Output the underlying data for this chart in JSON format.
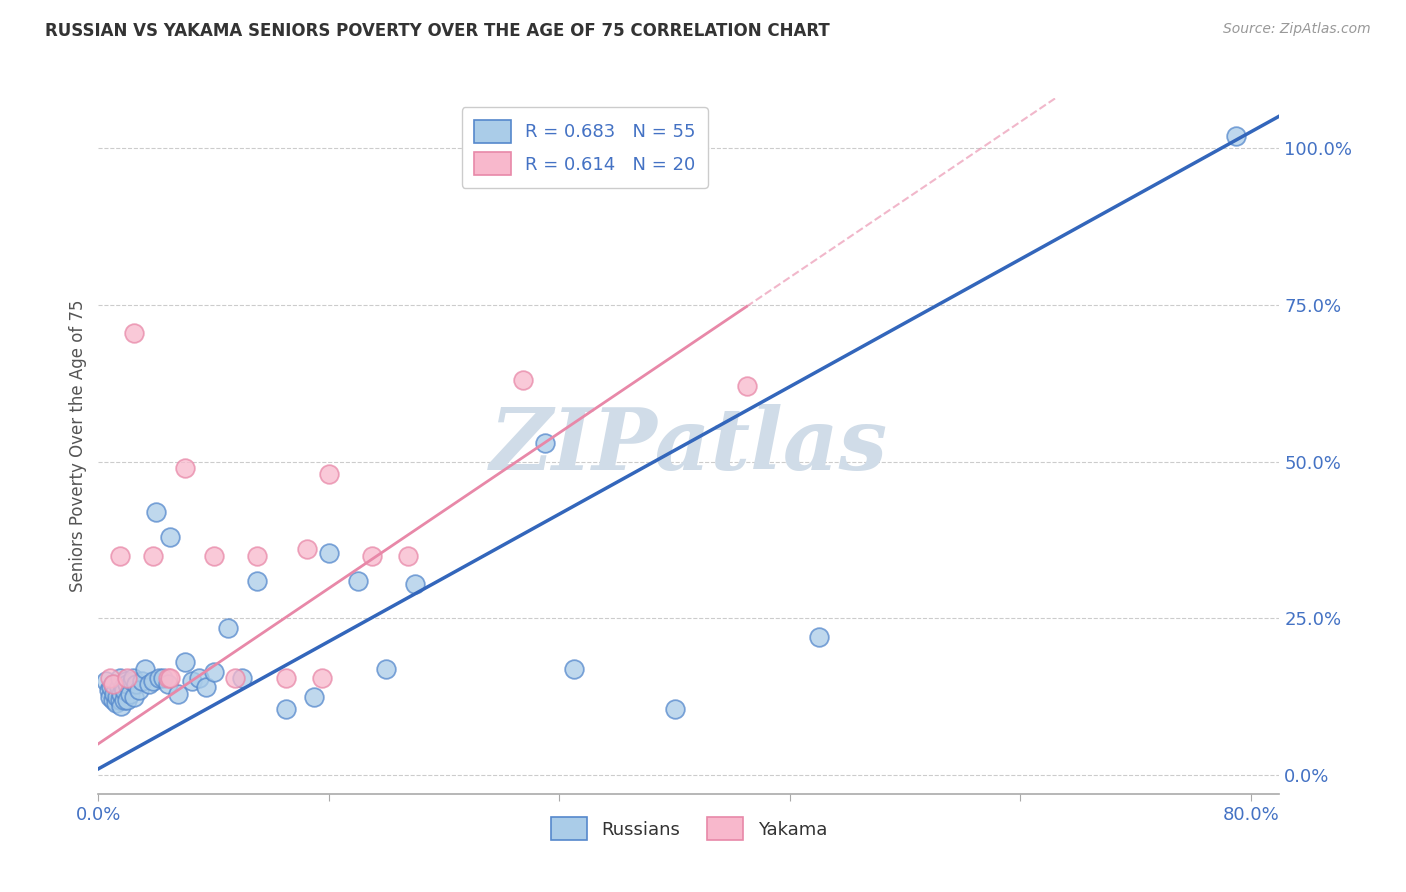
{
  "title": "RUSSIAN VS YAKAMA SENIORS POVERTY OVER THE AGE OF 75 CORRELATION CHART",
  "source": "Source: ZipAtlas.com",
  "ylabel": "Seniors Poverty Over the Age of 75",
  "xlim": [
    0.0,
    0.82
  ],
  "ylim": [
    -0.03,
    1.08
  ],
  "xticks": [
    0.0,
    0.16,
    0.32,
    0.48,
    0.64,
    0.8
  ],
  "xtick_labels": [
    "0.0%",
    "",
    "",
    "",
    "",
    "80.0%"
  ],
  "yticks": [
    0.0,
    0.25,
    0.5,
    0.75,
    1.0
  ],
  "ytick_labels": [
    "0.0%",
    "25.0%",
    "50.0%",
    "75.0%",
    "100.0%"
  ],
  "russian_R": 0.683,
  "russian_N": 55,
  "yakama_R": 0.614,
  "yakama_N": 20,
  "russian_color": "#aacce8",
  "russian_edge_color": "#5588cc",
  "russian_line_color": "#3366bb",
  "yakama_color": "#f8b8cc",
  "yakama_edge_color": "#e888a8",
  "yakama_line_color": "#e888a8",
  "watermark": "ZIPatlas",
  "watermark_color": "#d0dce8",
  "russian_x": [
    0.005,
    0.007,
    0.008,
    0.009,
    0.01,
    0.01,
    0.011,
    0.012,
    0.013,
    0.014,
    0.015,
    0.015,
    0.016,
    0.016,
    0.017,
    0.018,
    0.018,
    0.019,
    0.02,
    0.02,
    0.022,
    0.023,
    0.024,
    0.025,
    0.026,
    0.028,
    0.03,
    0.032,
    0.035,
    0.038,
    0.04,
    0.042,
    0.045,
    0.048,
    0.05,
    0.055,
    0.06,
    0.065,
    0.07,
    0.075,
    0.08,
    0.09,
    0.1,
    0.11,
    0.13,
    0.15,
    0.16,
    0.18,
    0.2,
    0.22,
    0.31,
    0.33,
    0.4,
    0.5,
    0.79
  ],
  "russian_y": [
    0.15,
    0.135,
    0.125,
    0.14,
    0.12,
    0.145,
    0.13,
    0.115,
    0.125,
    0.14,
    0.12,
    0.155,
    0.13,
    0.11,
    0.14,
    0.12,
    0.135,
    0.15,
    0.12,
    0.145,
    0.13,
    0.15,
    0.155,
    0.125,
    0.145,
    0.135,
    0.15,
    0.17,
    0.145,
    0.15,
    0.42,
    0.155,
    0.155,
    0.145,
    0.38,
    0.13,
    0.18,
    0.15,
    0.155,
    0.14,
    0.165,
    0.235,
    0.155,
    0.31,
    0.105,
    0.125,
    0.355,
    0.31,
    0.17,
    0.305,
    0.53,
    0.17,
    0.105,
    0.22,
    1.02
  ],
  "yakama_x": [
    0.008,
    0.01,
    0.015,
    0.02,
    0.025,
    0.038,
    0.048,
    0.05,
    0.06,
    0.08,
    0.095,
    0.11,
    0.13,
    0.145,
    0.155,
    0.16,
    0.19,
    0.215,
    0.295,
    0.45
  ],
  "yakama_y": [
    0.155,
    0.145,
    0.35,
    0.155,
    0.705,
    0.35,
    0.155,
    0.155,
    0.49,
    0.35,
    0.155,
    0.35,
    0.155,
    0.36,
    0.155,
    0.48,
    0.35,
    0.35,
    0.63,
    0.62
  ],
  "figsize": [
    14.06,
    8.92
  ],
  "dpi": 100,
  "blue_line_slope": 1.27,
  "blue_line_intercept": 0.01,
  "pink_line_slope": 1.55,
  "pink_line_intercept": 0.05
}
